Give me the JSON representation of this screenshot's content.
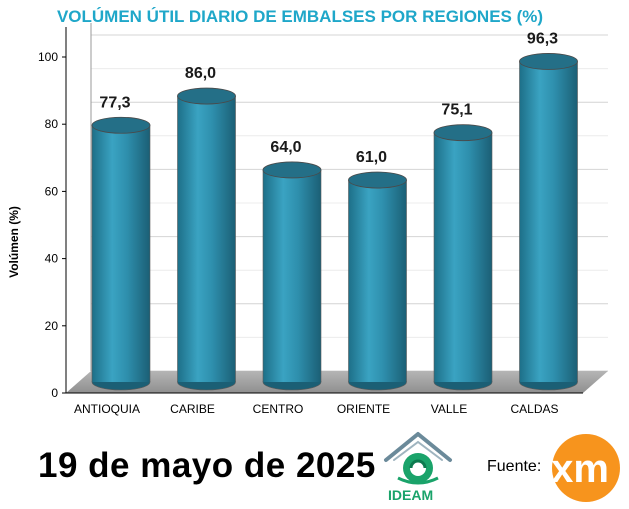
{
  "chart_data": {
    "type": "bar",
    "title": "VOLÚMEN ÚTIL DIARIO DE EMBALSES POR REGIONES (%)",
    "ylabel": "Volúmen (%)",
    "xlabel": "",
    "categories": [
      "ANTIOQUIA",
      "CARIBE",
      "CENTRO",
      "ORIENTE",
      "VALLE",
      "CALDAS"
    ],
    "values": [
      77.3,
      86.0,
      64.0,
      61.0,
      75.1,
      96.3
    ],
    "value_labels": [
      "77,3",
      "86,0",
      "64,0",
      "61,0",
      "75,1",
      "96,3"
    ],
    "ylim": [
      0,
      100
    ],
    "yticks": [
      "0",
      "20",
      "40",
      "60",
      "80",
      "100"
    ],
    "grid": true,
    "bar_color": "#2e8fad"
  },
  "footer": {
    "date": "19 de mayo de 2025",
    "source_label": "Fuente:",
    "ideam_logo_text": "IDEAM",
    "xm_logo_text": "xm"
  }
}
